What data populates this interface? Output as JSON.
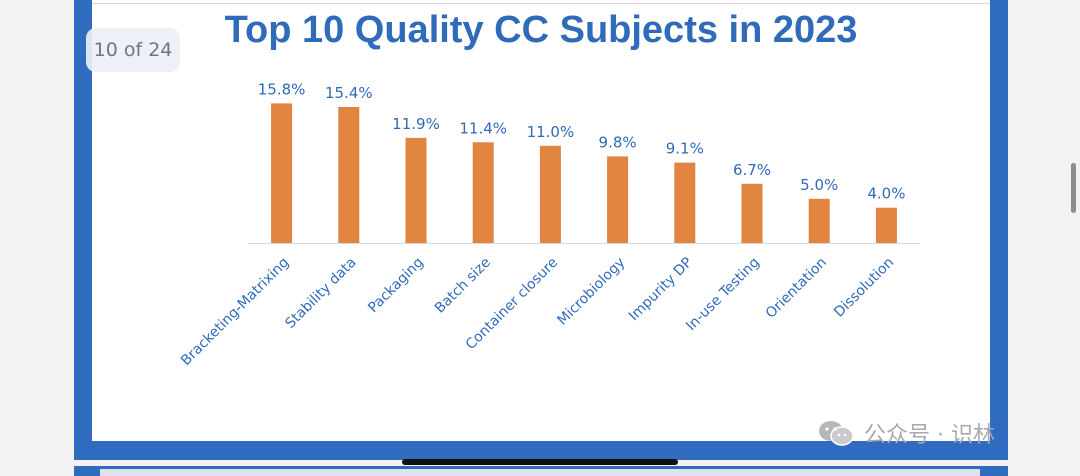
{
  "page_counter": "10 of 24",
  "watermark": "公众号 · 识林",
  "colors": {
    "bar": "#e0843f",
    "title": "#2f6bb8",
    "frame": "#2f6bbf",
    "labels": "#2f6bb8"
  },
  "chart_data": {
    "type": "bar",
    "title": "Top 10 Quality CC Subjects in 2023",
    "xlabel": "",
    "ylabel": "",
    "grid": false,
    "legend": "none",
    "ylim": [
      0,
      18
    ],
    "categories": [
      "Bracketing-Matrixing",
      "Stability data",
      "Packaging",
      "Batch size",
      "Container closure",
      "Microbiology",
      "Impurity DP",
      "In-use Testing",
      "Orientation",
      "Dissolution"
    ],
    "values": [
      15.8,
      15.4,
      11.9,
      11.4,
      11.0,
      9.8,
      9.1,
      6.7,
      5.0,
      4.0
    ],
    "data_labels": [
      "15.8%",
      "15.4%",
      "11.9%",
      "11.4%",
      "11.0%",
      "9.8%",
      "9.1%",
      "6.7%",
      "5.0%",
      "4.0%"
    ]
  }
}
